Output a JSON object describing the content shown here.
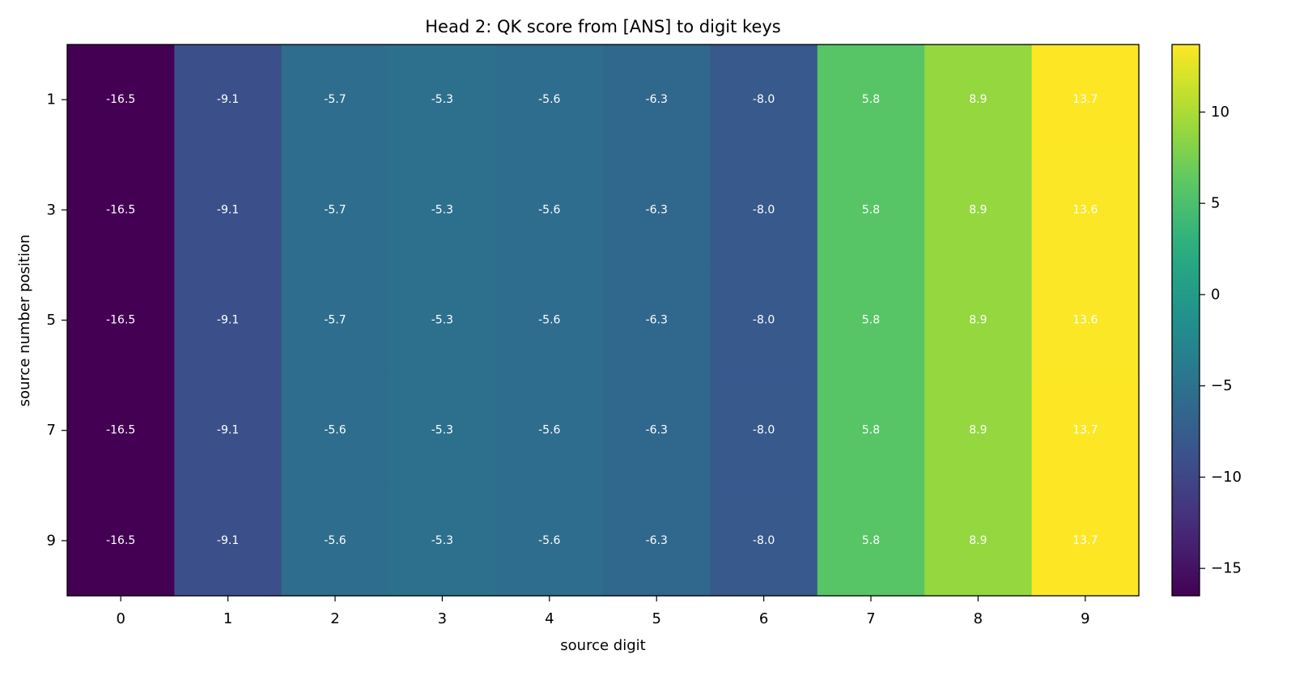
{
  "chart_data": {
    "type": "heatmap",
    "title": "Head 2: QK score from [ANS] to digit keys",
    "xlabel": "source digit",
    "ylabel": "source number position",
    "x_categories": [
      "0",
      "1",
      "2",
      "3",
      "4",
      "5",
      "6",
      "7",
      "8",
      "9"
    ],
    "y_categories": [
      "1",
      "3",
      "5",
      "7",
      "9"
    ],
    "values": [
      [
        -16.5,
        -9.1,
        -5.7,
        -5.3,
        -5.6,
        -6.3,
        -8.0,
        5.8,
        8.9,
        13.7
      ],
      [
        -16.5,
        -9.1,
        -5.7,
        -5.3,
        -5.6,
        -6.3,
        -8.0,
        5.8,
        8.9,
        13.6
      ],
      [
        -16.5,
        -9.1,
        -5.7,
        -5.3,
        -5.6,
        -6.3,
        -8.0,
        5.8,
        8.9,
        13.6
      ],
      [
        -16.5,
        -9.1,
        -5.6,
        -5.3,
        -5.6,
        -6.3,
        -8.0,
        5.8,
        8.9,
        13.7
      ],
      [
        -16.5,
        -9.1,
        -5.6,
        -5.3,
        -5.6,
        -6.3,
        -8.0,
        5.8,
        8.9,
        13.7
      ]
    ],
    "colormap": "viridis",
    "color_range": [
      -16.5,
      13.7
    ],
    "colorbar": {
      "ticks": [
        -15,
        -10,
        -5,
        0,
        5,
        10
      ],
      "tick_labels": [
        "−15",
        "−10",
        "−5",
        "0",
        "5",
        "10"
      ],
      "placement": "right"
    },
    "annotation_color": "#ffffff",
    "grid": false
  }
}
